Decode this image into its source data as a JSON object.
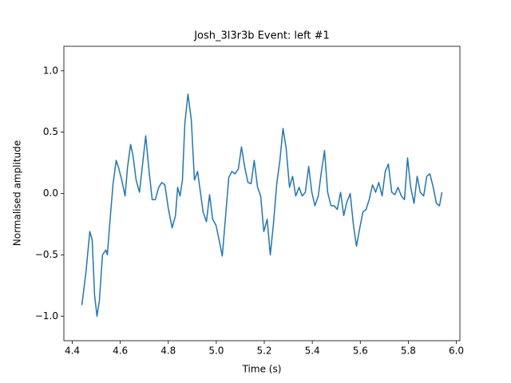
{
  "chart_data": {
    "type": "line",
    "title": "Josh_3l3r3b Event: left #1",
    "xlabel": "Time (s)",
    "ylabel": "Normalised amplitude",
    "x": [
      4.44,
      4.457,
      4.473,
      4.483,
      4.493,
      4.503,
      4.513,
      4.526,
      4.54,
      4.546,
      4.556,
      4.57,
      4.583,
      4.593,
      4.606,
      4.62,
      4.63,
      4.643,
      4.653,
      4.666,
      4.68,
      4.693,
      4.706,
      4.72,
      4.733,
      4.746,
      4.76,
      4.773,
      4.786,
      4.8,
      4.816,
      4.83,
      4.839,
      4.849,
      4.859,
      4.869,
      4.882,
      4.896,
      4.909,
      4.922,
      4.936,
      4.945,
      4.959,
      4.972,
      4.985,
      4.999,
      5.012,
      5.025,
      5.039,
      5.052,
      5.065,
      5.078,
      5.092,
      5.105,
      5.119,
      5.132,
      5.145,
      5.158,
      5.172,
      5.185,
      5.198,
      5.212,
      5.225,
      5.238,
      5.252,
      5.265,
      5.278,
      5.291,
      5.305,
      5.318,
      5.331,
      5.345,
      5.358,
      5.371,
      5.385,
      5.398,
      5.411,
      5.425,
      5.438,
      5.451,
      5.464,
      5.478,
      5.491,
      5.504,
      5.518,
      5.531,
      5.544,
      5.558,
      5.571,
      5.584,
      5.598,
      5.611,
      5.624,
      5.637,
      5.651,
      5.664,
      5.677,
      5.691,
      5.704,
      5.717,
      5.731,
      5.744,
      5.757,
      5.771,
      5.784,
      5.797,
      5.81,
      5.824,
      5.837,
      5.85,
      5.864,
      5.877,
      5.89,
      5.904,
      5.917,
      5.93,
      5.94
    ],
    "series": [
      {
        "name": "amplitude",
        "color": "#1f77b4",
        "values": [
          -0.91,
          -0.64,
          -0.31,
          -0.38,
          -0.83,
          -1.0,
          -0.87,
          -0.5,
          -0.46,
          -0.5,
          -0.25,
          0.08,
          0.27,
          0.21,
          0.11,
          -0.02,
          0.21,
          0.4,
          0.31,
          0.11,
          0.01,
          0.24,
          0.47,
          0.18,
          -0.05,
          -0.05,
          0.05,
          0.09,
          0.07,
          -0.12,
          -0.28,
          -0.18,
          0.05,
          -0.02,
          0.11,
          0.57,
          0.81,
          0.6,
          0.11,
          0.18,
          -0.02,
          -0.15,
          -0.23,
          -0.01,
          -0.21,
          -0.26,
          -0.38,
          -0.51,
          -0.18,
          0.13,
          0.18,
          0.16,
          0.2,
          0.38,
          0.21,
          0.09,
          0.08,
          0.27,
          0.05,
          -0.02,
          -0.31,
          -0.21,
          -0.5,
          -0.25,
          0.08,
          0.27,
          0.53,
          0.37,
          0.05,
          0.14,
          -0.02,
          0.05,
          -0.02,
          0.01,
          0.22,
          0.01,
          -0.1,
          -0.02,
          0.18,
          0.35,
          0.01,
          -0.1,
          -0.1,
          -0.13,
          0.01,
          -0.18,
          -0.07,
          0.0,
          -0.25,
          -0.43,
          -0.28,
          -0.15,
          -0.13,
          -0.05,
          0.07,
          0.01,
          0.09,
          -0.02,
          0.18,
          0.24,
          0.01,
          -0.01,
          0.05,
          -0.02,
          -0.05,
          0.29,
          0.05,
          -0.08,
          0.14,
          0.01,
          -0.02,
          0.14,
          0.16,
          0.05,
          -0.08,
          -0.1,
          0.01
        ]
      }
    ],
    "xlim": [
      4.365,
      6.015
    ],
    "ylim": [
      -1.2,
      1.2
    ],
    "xticks": [
      4.4,
      4.6,
      4.8,
      {
        "value": 5,
        "label": "5.0"
      },
      5.2,
      5.4,
      5.6,
      5.8,
      {
        "value": 6,
        "label": "6.0"
      }
    ],
    "yticks": [
      {
        "value": -1,
        "label": "−1.0"
      },
      {
        "value": -0.5,
        "label": "−0.5"
      },
      {
        "value": 0,
        "label": "0.0"
      },
      0.5,
      {
        "value": 1,
        "label": "1.0"
      }
    ]
  }
}
